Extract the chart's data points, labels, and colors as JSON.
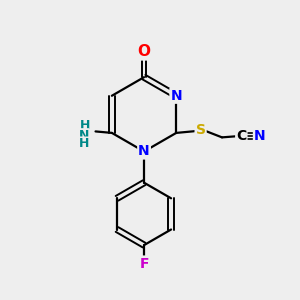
{
  "bg_color": "#eeeeee",
  "bond_color": "#000000",
  "atom_colors": {
    "O": "#ff0000",
    "N": "#0000ff",
    "NH_color": "#008888",
    "H_color": "#008888",
    "S": "#ccaa00",
    "F": "#cc00cc",
    "C": "#000000",
    "CN_N": "#0000ff"
  },
  "figsize": [
    3.0,
    3.0
  ],
  "dpi": 100
}
